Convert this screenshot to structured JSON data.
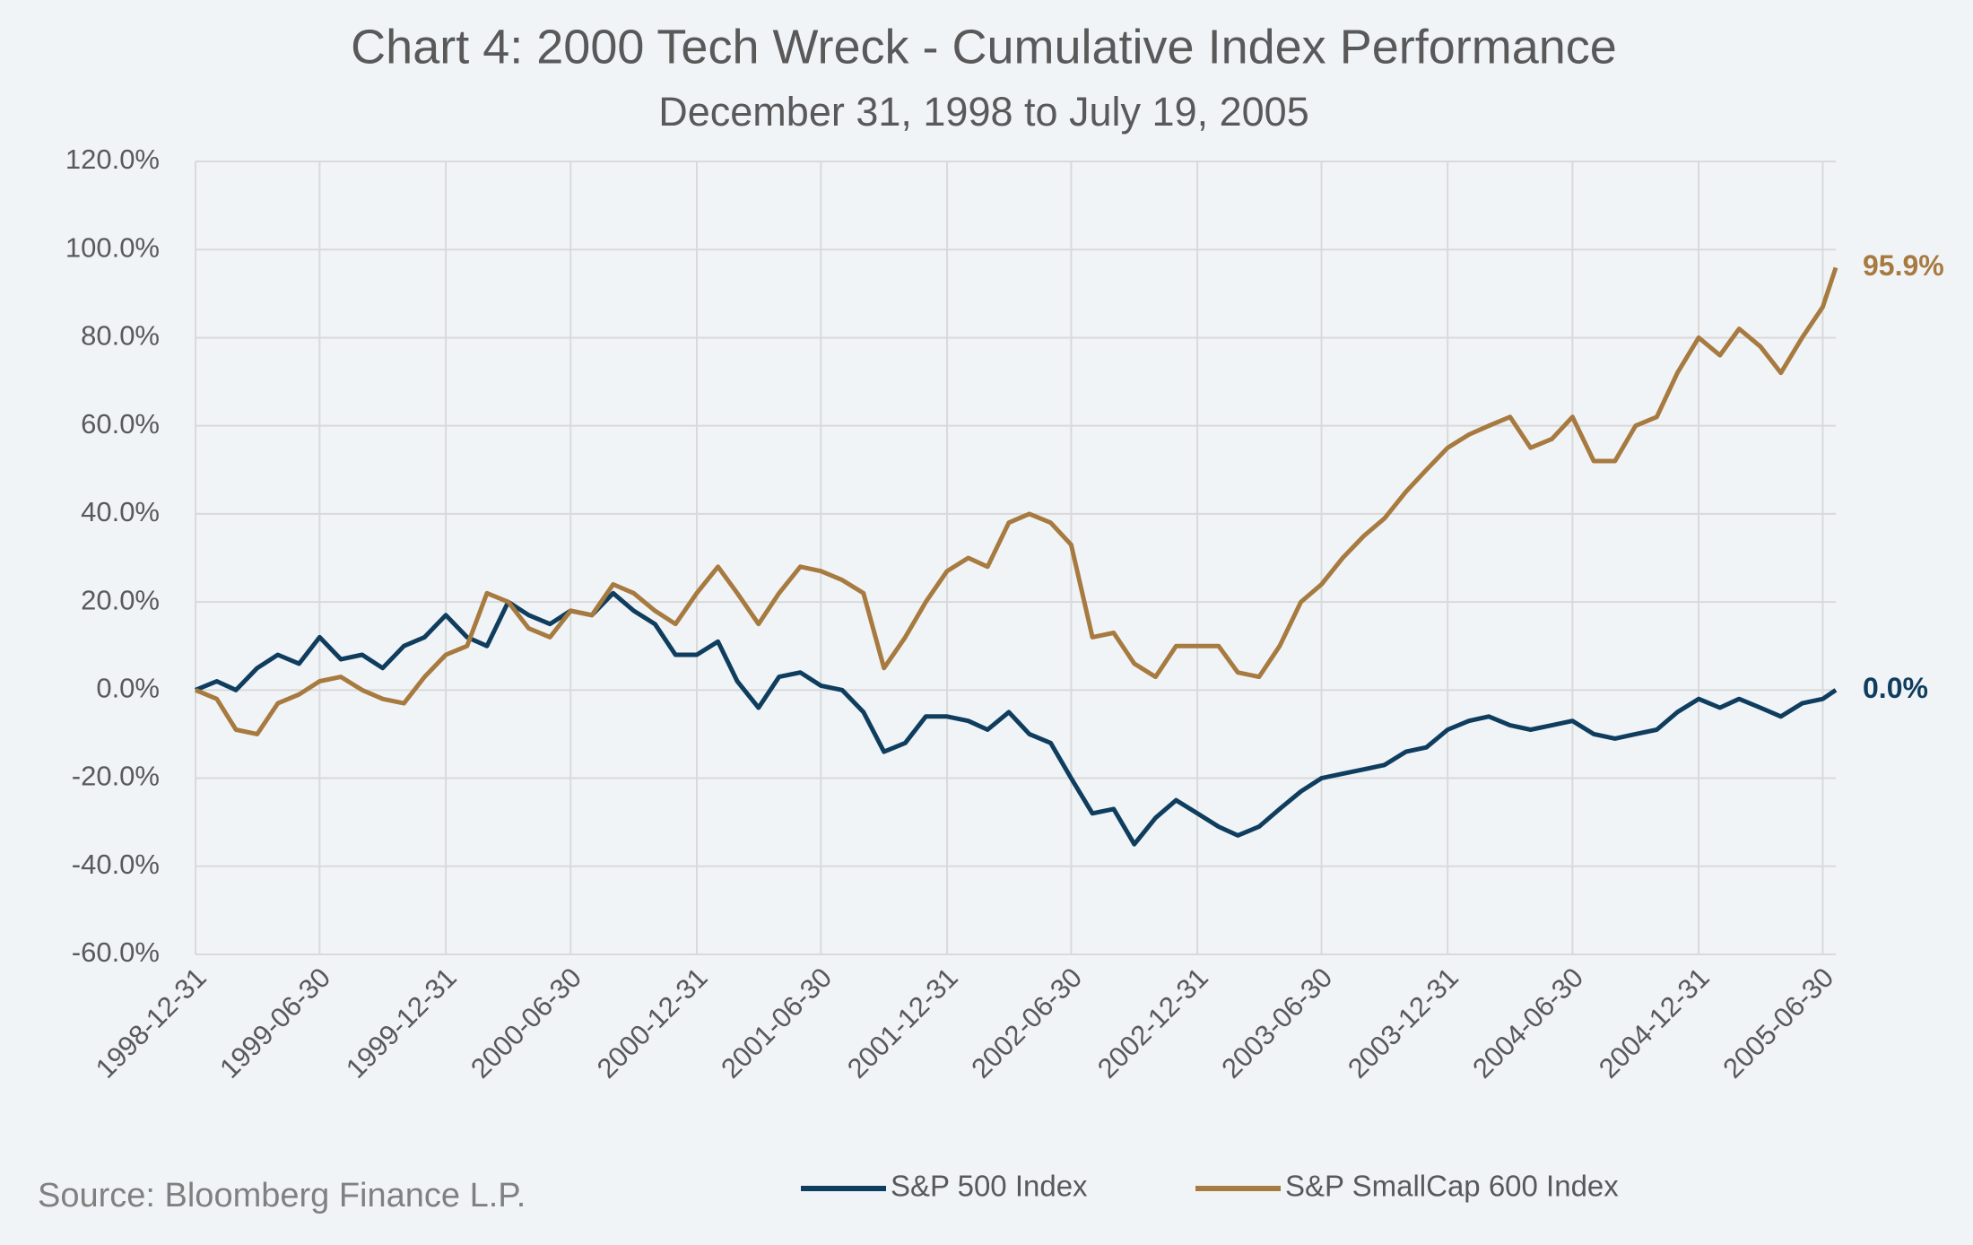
{
  "chart_data": {
    "type": "line",
    "title": "Chart 4: 2000 Tech Wreck - Cumulative Index Performance",
    "subtitle": "December 31, 1998 to July 19, 2005",
    "source": "Source: Bloomberg Finance L.P.",
    "x": [
      "1998-12-31",
      "1999-01-31",
      "1999-02-28",
      "1999-03-31",
      "1999-04-30",
      "1999-05-31",
      "1999-06-30",
      "1999-07-31",
      "1999-08-31",
      "1999-09-30",
      "1999-10-31",
      "1999-11-30",
      "1999-12-31",
      "2000-01-31",
      "2000-02-29",
      "2000-03-31",
      "2000-04-30",
      "2000-05-31",
      "2000-06-30",
      "2000-07-31",
      "2000-08-31",
      "2000-09-30",
      "2000-10-31",
      "2000-11-30",
      "2000-12-31",
      "2001-01-31",
      "2001-02-28",
      "2001-03-31",
      "2001-04-30",
      "2001-05-31",
      "2001-06-30",
      "2001-07-31",
      "2001-08-31",
      "2001-09-30",
      "2001-10-31",
      "2001-11-30",
      "2001-12-31",
      "2002-01-31",
      "2002-02-28",
      "2002-03-31",
      "2002-04-30",
      "2002-05-31",
      "2002-06-30",
      "2002-07-31",
      "2002-08-31",
      "2002-09-30",
      "2002-10-31",
      "2002-11-30",
      "2002-12-31",
      "2003-01-31",
      "2003-02-28",
      "2003-03-31",
      "2003-04-30",
      "2003-05-31",
      "2003-06-30",
      "2003-07-31",
      "2003-08-31",
      "2003-09-30",
      "2003-10-31",
      "2003-11-30",
      "2003-12-31",
      "2004-01-31",
      "2004-02-29",
      "2004-03-31",
      "2004-04-30",
      "2004-05-31",
      "2004-06-30",
      "2004-07-31",
      "2004-08-31",
      "2004-09-30",
      "2004-10-31",
      "2004-11-30",
      "2004-12-31",
      "2005-01-31",
      "2005-02-28",
      "2005-03-31",
      "2005-04-30",
      "2005-05-31",
      "2005-06-30",
      "2005-07-19"
    ],
    "series": [
      {
        "name": "S&P 500 Index",
        "color": "#0f3d5e",
        "end_label": "0.0%",
        "values": [
          0,
          2,
          0,
          5,
          8,
          6,
          12,
          7,
          8,
          5,
          10,
          12,
          17,
          12,
          10,
          20,
          17,
          15,
          18,
          17,
          22,
          18,
          15,
          8,
          8,
          11,
          2,
          -4,
          3,
          4,
          1,
          0,
          -5,
          -14,
          -12,
          -6,
          -6,
          -7,
          -9,
          -5,
          -10,
          -12,
          -20,
          -28,
          -27,
          -35,
          -29,
          -25,
          -28,
          -31,
          -33,
          -31,
          -27,
          -23,
          -20,
          -19,
          -18,
          -17,
          -14,
          -13,
          -9,
          -7,
          -6,
          -8,
          -9,
          -8,
          -7,
          -10,
          -11,
          -10,
          -9,
          -5,
          -2,
          -4,
          -2,
          -4,
          -6,
          -3,
          -2,
          0
        ]
      },
      {
        "name": "S&P SmallCap 600 Index",
        "color": "#a77a40",
        "end_label": "95.9%",
        "values": [
          0,
          -2,
          -9,
          -10,
          -3,
          -1,
          2,
          3,
          0,
          -2,
          -3,
          3,
          8,
          10,
          22,
          20,
          14,
          12,
          18,
          17,
          24,
          22,
          18,
          15,
          22,
          28,
          22,
          15,
          22,
          28,
          27,
          25,
          22,
          5,
          12,
          20,
          27,
          30,
          28,
          38,
          40,
          38,
          33,
          12,
          13,
          6,
          3,
          10,
          10,
          10,
          4,
          3,
          10,
          20,
          24,
          30,
          35,
          39,
          45,
          50,
          55,
          58,
          60,
          62,
          55,
          57,
          62,
          52,
          52,
          60,
          62,
          72,
          80,
          76,
          82,
          78,
          72,
          80,
          87,
          95.9
        ]
      }
    ],
    "xlim": [
      "1998-12-31",
      "2005-07-19"
    ],
    "xticks": [
      "1998-12-31",
      "1999-06-30",
      "1999-12-31",
      "2000-06-30",
      "2000-12-31",
      "2001-06-30",
      "2001-12-31",
      "2002-06-30",
      "2002-12-31",
      "2003-06-30",
      "2003-12-31",
      "2004-06-30",
      "2004-12-31",
      "2005-06-30"
    ],
    "ylim": [
      -60,
      120
    ],
    "yticks": [
      {
        "value": -60,
        "label": "-60.0%"
      },
      {
        "value": -40,
        "label": "-40.0%"
      },
      {
        "value": -20,
        "label": "-20.0%"
      },
      {
        "value": 0,
        "label": "0.0%"
      },
      {
        "value": 20,
        "label": "20.0%"
      },
      {
        "value": 40,
        "label": "40.0%"
      },
      {
        "value": 60,
        "label": "60.0%"
      },
      {
        "value": 80,
        "label": "80.0%"
      },
      {
        "value": 100,
        "label": "100.0%"
      },
      {
        "value": 120,
        "label": "120.0%"
      }
    ],
    "grid": true,
    "legend": "bottom"
  }
}
